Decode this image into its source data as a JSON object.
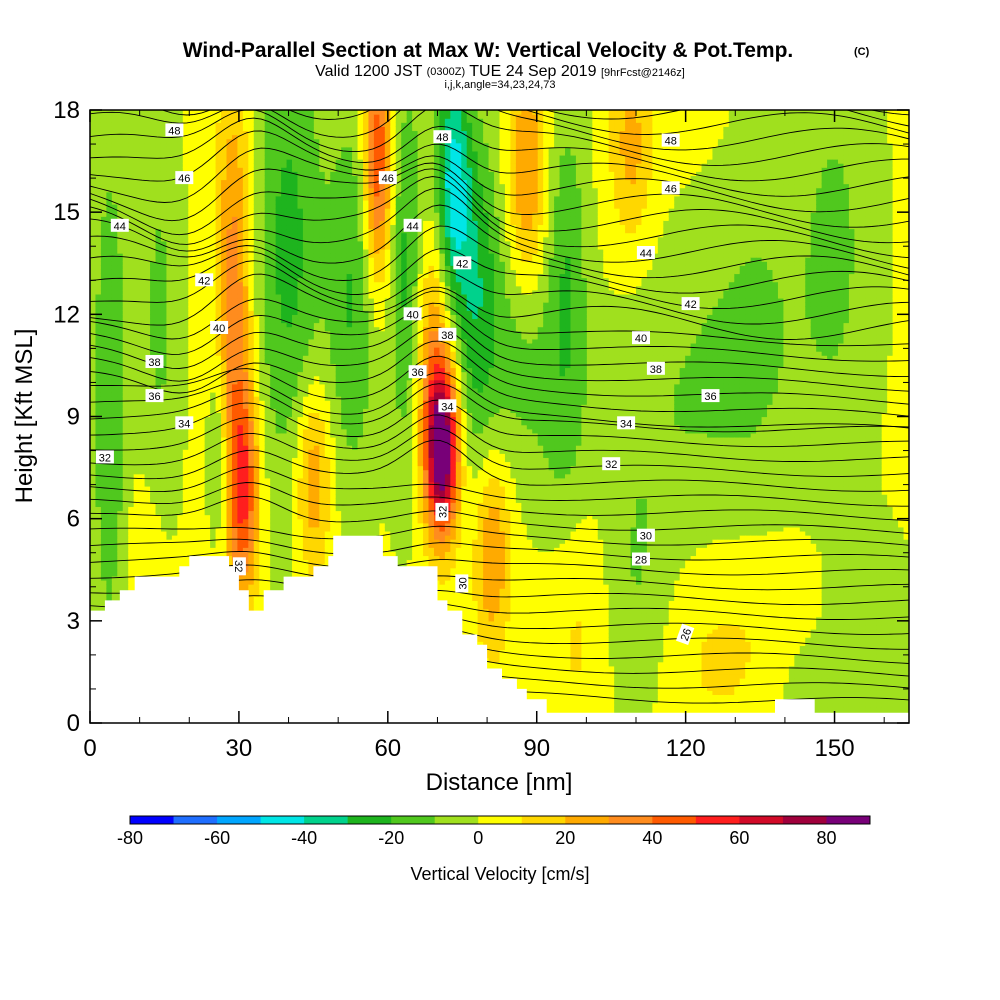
{
  "chart_data": {
    "type": "heatmap",
    "title": "Wind-Parallel Section at Max W: Vertical Velocity & Pot.Temp.",
    "title_tag": "(C)",
    "subtitle_parts": [
      "Valid 1200 JST",
      "(0300Z)",
      "TUE 24 Sep 2019",
      "[9hrFcst@2146z]"
    ],
    "subtitle2": "i,j,k,angle=34,23,24,73",
    "xlabel": "Distance [nm]",
    "ylabel": "Height [Kft MSL]",
    "xlim": [
      0,
      165
    ],
    "ylim": [
      0,
      18
    ],
    "x_ticks": [
      0,
      30,
      60,
      90,
      120,
      150
    ],
    "y_ticks": [
      0,
      3,
      6,
      9,
      12,
      15,
      18
    ],
    "colorbar": {
      "label": "Vertical Velocity [cm/s]",
      "range": [
        -80,
        90
      ],
      "step": 10,
      "tick_values": [
        -80,
        -60,
        -40,
        -20,
        0,
        20,
        40,
        60,
        80
      ],
      "colors": [
        "#0000ff",
        "#1f6eff",
        "#00a6ff",
        "#00e6e6",
        "#00d28c",
        "#1eb41e",
        "#50c81e",
        "#a0e01e",
        "#ffff00",
        "#ffd700",
        "#ffaa00",
        "#ff8c1e",
        "#ff5a00",
        "#ff1e1e",
        "#d20a28",
        "#a0003c",
        "#780078"
      ]
    },
    "velocity_field": [
      {
        "x": 4,
        "z": 9.5,
        "w": -22,
        "sx": 2.5,
        "sz": 5.5
      },
      {
        "x": 14,
        "z": 12.0,
        "w": -14,
        "sx": 3.0,
        "sz": 4.5
      },
      {
        "x": 11,
        "z": 4.5,
        "w": 8,
        "sx": 3.0,
        "sz": 2.0
      },
      {
        "x": 29,
        "z": 12.5,
        "w": 35,
        "sx": 2.5,
        "sz": 4.5
      },
      {
        "x": 31,
        "z": 6.8,
        "w": 45,
        "sx": 2.2,
        "sz": 2.2
      },
      {
        "x": 26,
        "z": 8.0,
        "w": -18,
        "sx": 1.5,
        "sz": 2.0
      },
      {
        "x": 40,
        "z": 14.0,
        "w": -25,
        "sx": 5.0,
        "sz": 5.0
      },
      {
        "x": 45,
        "z": 7.2,
        "w": 30,
        "sx": 2.5,
        "sz": 2.0
      },
      {
        "x": 53,
        "z": 12.5,
        "w": -22,
        "sx": 3.5,
        "sz": 4.0
      },
      {
        "x": 58,
        "z": 16.5,
        "w": 50,
        "sx": 2.0,
        "sz": 2.5
      },
      {
        "x": 64,
        "z": 13.0,
        "w": -28,
        "sx": 2.5,
        "sz": 4.0
      },
      {
        "x": 71,
        "z": 8.0,
        "w": 85,
        "sx": 2.3,
        "sz": 1.7
      },
      {
        "x": 69,
        "z": 10.8,
        "w": 30,
        "sx": 3.0,
        "sz": 3.0
      },
      {
        "x": 73,
        "z": 15.8,
        "w": -45,
        "sx": 2.5,
        "sz": 2.5
      },
      {
        "x": 78,
        "z": 12.5,
        "w": -30,
        "sx": 3.5,
        "sz": 3.5
      },
      {
        "x": 81,
        "z": 5.0,
        "w": 30,
        "sx": 2.5,
        "sz": 2.0
      },
      {
        "x": 88,
        "z": 16.0,
        "w": 30,
        "sx": 2.8,
        "sz": 2.5
      },
      {
        "x": 87,
        "z": 11.0,
        "w": -15,
        "sx": 4.0,
        "sz": 2.5
      },
      {
        "x": 96,
        "z": 13.5,
        "w": -20,
        "sx": 3.0,
        "sz": 3.5
      },
      {
        "x": 98,
        "z": 3.5,
        "w": 12,
        "sx": 5.0,
        "sz": 3.0
      },
      {
        "x": 109,
        "z": 17.0,
        "w": 22,
        "sx": 3.0,
        "sz": 2.0
      },
      {
        "x": 110,
        "z": 3.0,
        "w": -12,
        "sx": 5.0,
        "sz": 2.5
      },
      {
        "x": 110,
        "z": 8.0,
        "w": -8,
        "sx": 10.0,
        "sz": 3.0
      },
      {
        "x": 128,
        "z": 10.5,
        "w": -12,
        "sx": 10.0,
        "sz": 3.0
      },
      {
        "x": 135,
        "z": 13.0,
        "w": -6,
        "sx": 5.0,
        "sz": 4.0
      },
      {
        "x": 150,
        "z": 14.0,
        "w": -14,
        "sx": 6.0,
        "sz": 4.5
      },
      {
        "x": 128,
        "z": 2.0,
        "w": 10,
        "sx": 12.0,
        "sz": 2.0
      },
      {
        "x": 158,
        "z": 2.5,
        "w": -10,
        "sx": 6.0,
        "sz": 2.0
      },
      {
        "x": 145,
        "z": 1.0,
        "w": -10,
        "sx": 6.0,
        "sz": 1.2
      },
      {
        "x": 95,
        "z": 7.5,
        "w": -10,
        "sx": 4.0,
        "sz": 3.0
      }
    ],
    "terrain": [
      [
        0,
        3.3
      ],
      [
        3,
        3.3
      ],
      [
        3,
        3.6
      ],
      [
        6,
        3.6
      ],
      [
        6,
        3.9
      ],
      [
        9,
        3.9
      ],
      [
        9,
        4.3
      ],
      [
        18,
        4.3
      ],
      [
        18,
        4.6
      ],
      [
        20,
        4.6
      ],
      [
        20,
        4.9
      ],
      [
        28,
        4.9
      ],
      [
        28,
        4.6
      ],
      [
        30,
        4.6
      ],
      [
        30,
        3.9
      ],
      [
        32,
        3.9
      ],
      [
        32,
        3.3
      ],
      [
        35,
        3.3
      ],
      [
        35,
        3.9
      ],
      [
        39,
        3.9
      ],
      [
        39,
        4.3
      ],
      [
        45,
        4.3
      ],
      [
        45,
        4.6
      ],
      [
        48,
        4.6
      ],
      [
        48,
        4.9
      ],
      [
        49,
        4.9
      ],
      [
        49,
        5.5
      ],
      [
        59,
        5.5
      ],
      [
        59,
        4.9
      ],
      [
        62,
        4.9
      ],
      [
        62,
        4.6
      ],
      [
        70,
        4.6
      ],
      [
        70,
        3.6
      ],
      [
        72,
        3.6
      ],
      [
        72,
        3.3
      ],
      [
        75,
        3.3
      ],
      [
        75,
        2.6
      ],
      [
        78,
        2.6
      ],
      [
        78,
        2.3
      ],
      [
        80,
        2.3
      ],
      [
        80,
        1.6
      ],
      [
        83,
        1.6
      ],
      [
        83,
        1.3
      ],
      [
        86,
        1.3
      ],
      [
        86,
        1.0
      ],
      [
        88,
        1.0
      ],
      [
        88,
        0.7
      ],
      [
        92,
        0.7
      ],
      [
        92,
        0.3
      ],
      [
        138,
        0.3
      ],
      [
        138,
        0.7
      ],
      [
        146,
        0.7
      ],
      [
        146,
        0.3
      ],
      [
        165,
        0.3
      ]
    ],
    "theta_labels": [
      {
        "x": 17,
        "z": 17.4,
        "v": "48"
      },
      {
        "x": 19,
        "z": 16.0,
        "v": "46"
      },
      {
        "x": 6,
        "z": 14.6,
        "v": "44"
      },
      {
        "x": 23,
        "z": 13.0,
        "v": "42"
      },
      {
        "x": 26,
        "z": 11.6,
        "v": "40"
      },
      {
        "x": 13,
        "z": 10.6,
        "v": "38"
      },
      {
        "x": 13,
        "z": 9.6,
        "v": "36"
      },
      {
        "x": 19,
        "z": 8.8,
        "v": "34"
      },
      {
        "x": 3,
        "z": 7.8,
        "v": "32"
      },
      {
        "x": 60,
        "z": 16.0,
        "v": "46"
      },
      {
        "x": 71,
        "z": 17.2,
        "v": "48"
      },
      {
        "x": 65,
        "z": 14.6,
        "v": "44"
      },
      {
        "x": 75,
        "z": 13.5,
        "v": "42"
      },
      {
        "x": 65,
        "z": 12.0,
        "v": "40"
      },
      {
        "x": 72,
        "z": 11.4,
        "v": "38"
      },
      {
        "x": 66,
        "z": 10.3,
        "v": "36"
      },
      {
        "x": 72,
        "z": 9.3,
        "v": "34"
      },
      {
        "x": 71,
        "z": 6.2,
        "v": "32",
        "rot": -90
      },
      {
        "x": 75,
        "z": 4.1,
        "v": "30",
        "rot": -90
      },
      {
        "x": 30,
        "z": 4.6,
        "v": "32",
        "rot": 90
      },
      {
        "x": 117,
        "z": 17.1,
        "v": "48"
      },
      {
        "x": 117,
        "z": 15.7,
        "v": "46"
      },
      {
        "x": 112,
        "z": 13.8,
        "v": "44"
      },
      {
        "x": 121,
        "z": 12.3,
        "v": "42"
      },
      {
        "x": 111,
        "z": 11.3,
        "v": "40"
      },
      {
        "x": 114,
        "z": 10.4,
        "v": "38"
      },
      {
        "x": 125,
        "z": 9.6,
        "v": "36"
      },
      {
        "x": 108,
        "z": 8.8,
        "v": "34"
      },
      {
        "x": 105,
        "z": 7.6,
        "v": "32"
      },
      {
        "x": 112,
        "z": 5.5,
        "v": "30"
      },
      {
        "x": 111,
        "z": 4.8,
        "v": "28"
      },
      {
        "x": 120,
        "z": 2.6,
        "v": "26",
        "rot": -70
      }
    ]
  }
}
